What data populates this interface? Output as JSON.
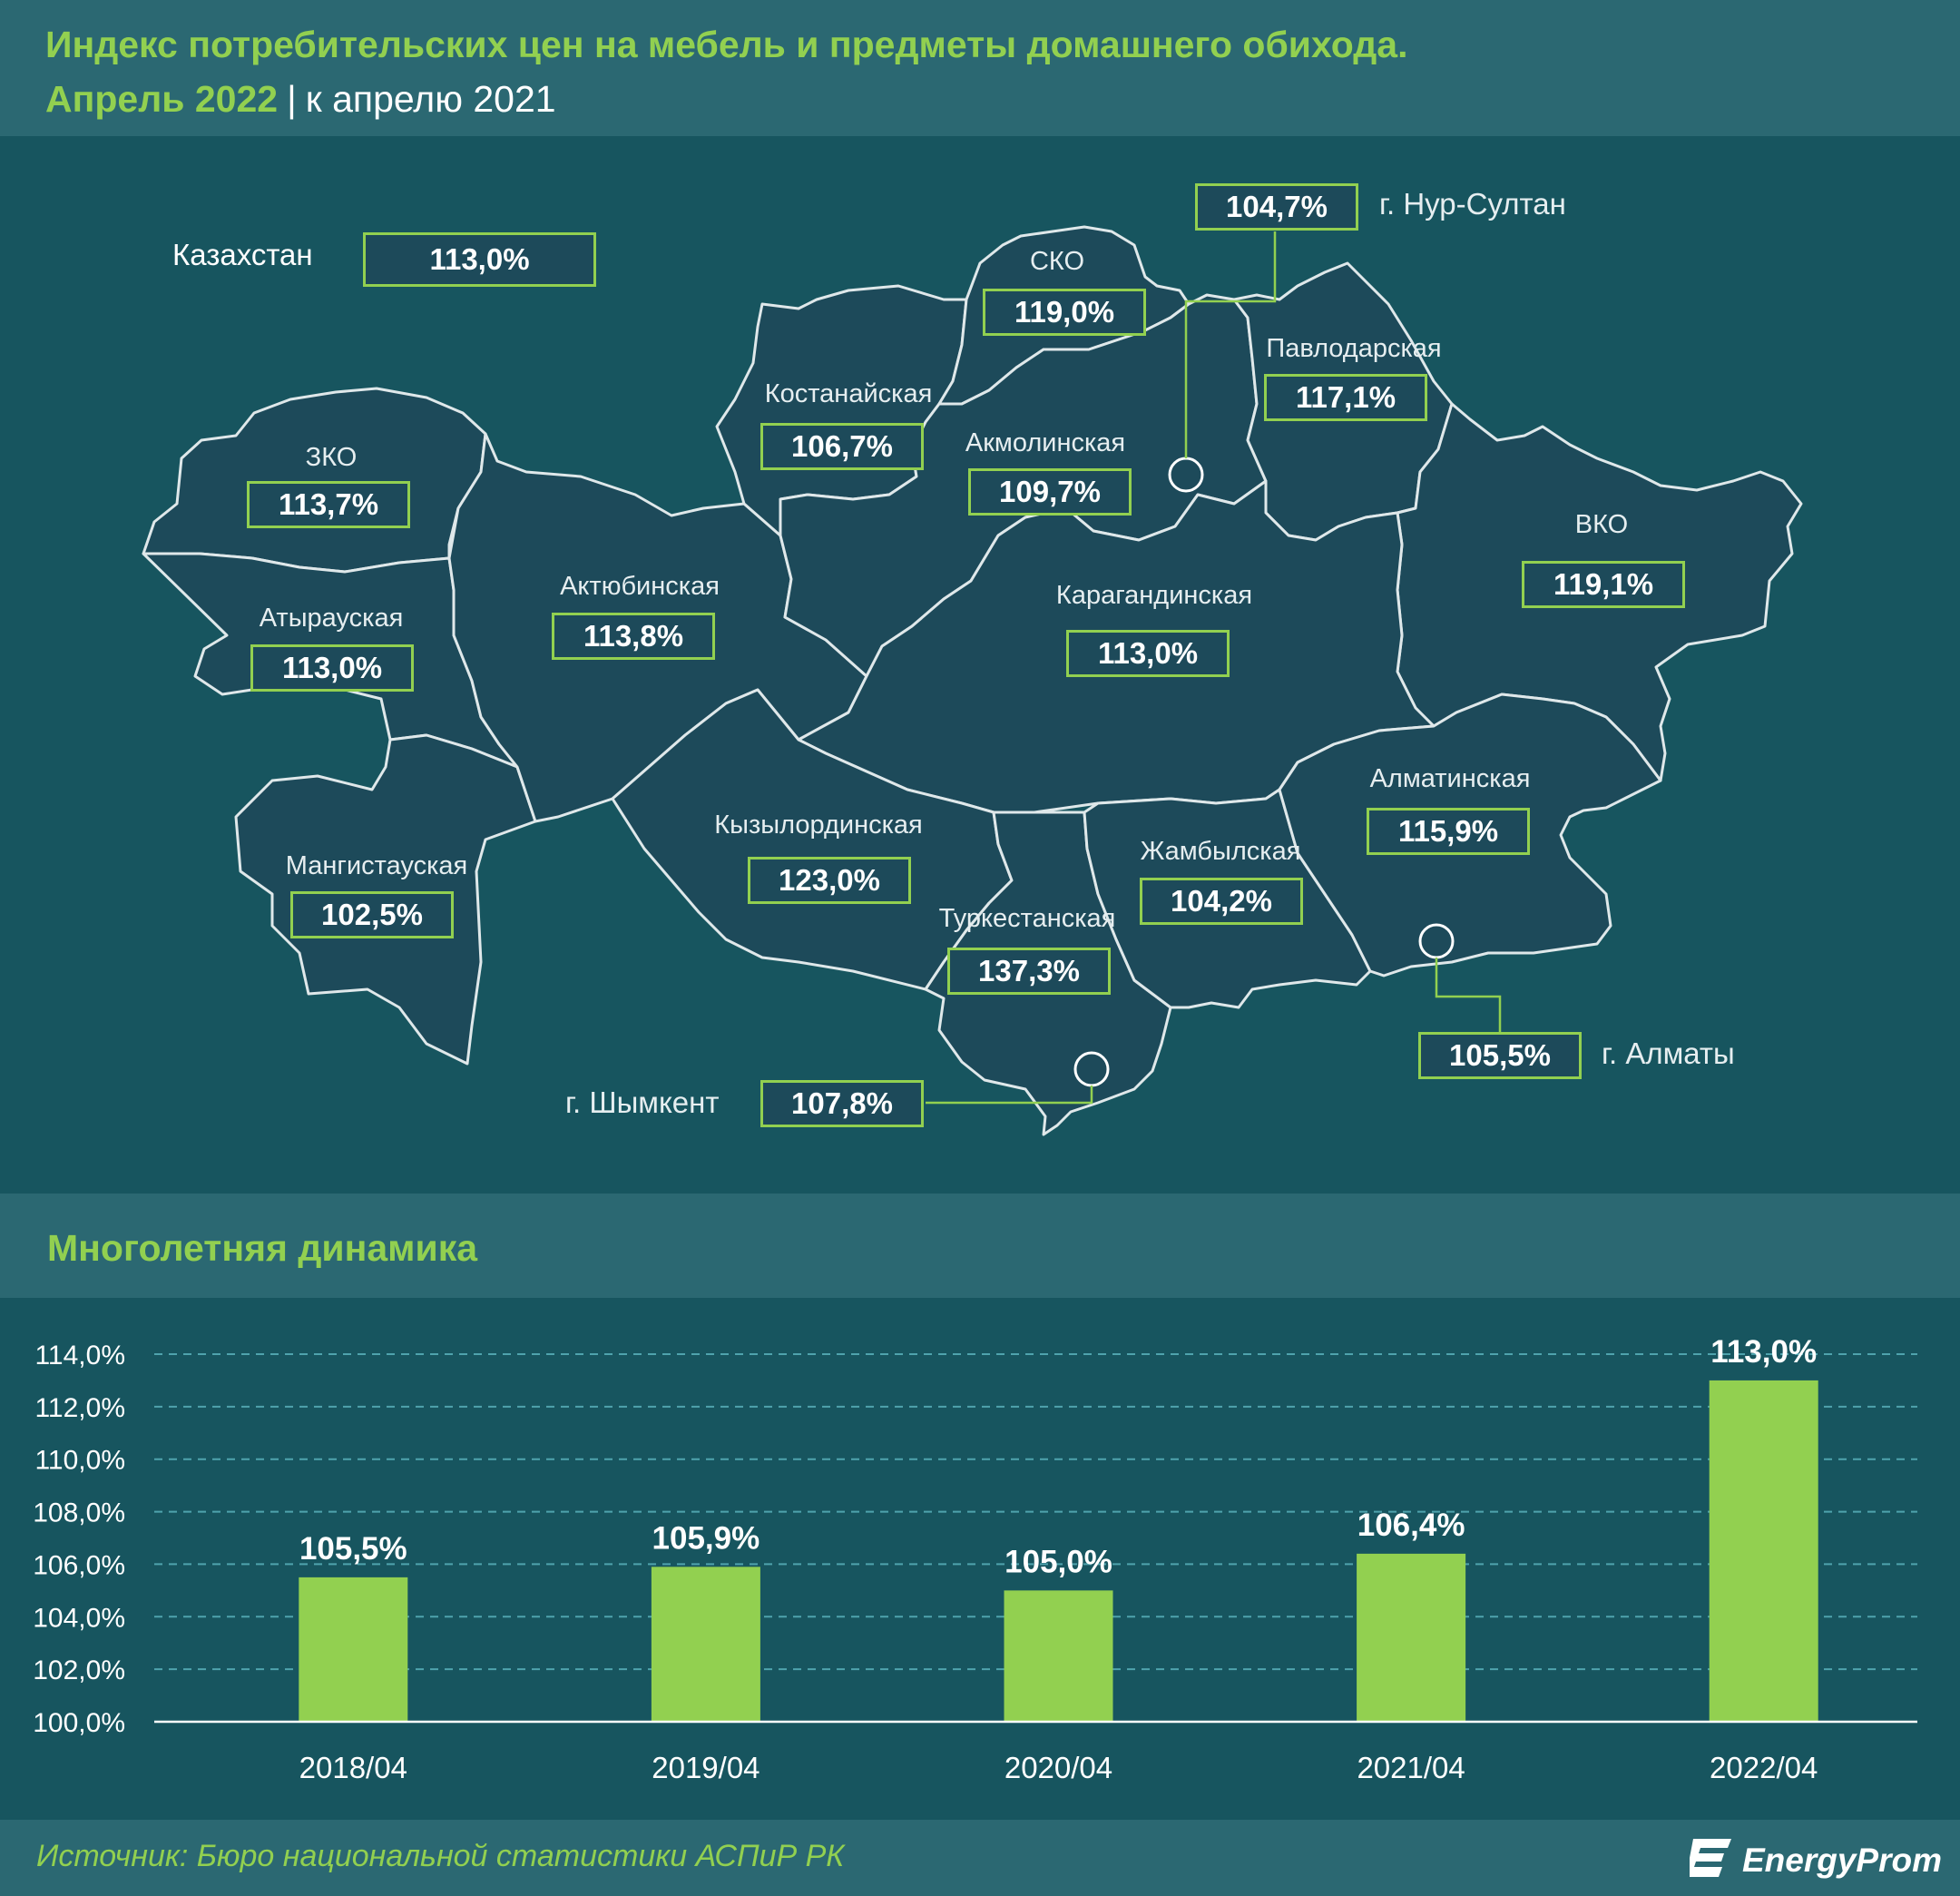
{
  "header": {
    "title": "Индекс потребительских цен на мебель и предметы домашнего обихода.",
    "month": "Апрель 2022",
    "separator": "|",
    "comparison": "к апрелю 2021"
  },
  "map": {
    "country": {
      "name": "Казахстан",
      "value": "113,0%"
    },
    "regions": [
      {
        "id": "zko",
        "name": "ЗКО",
        "value": "113,7%"
      },
      {
        "id": "atyrau",
        "name": "Атырауская",
        "value": "113,0%"
      },
      {
        "id": "mangystau",
        "name": "Мангистауская",
        "value": "102,5%"
      },
      {
        "id": "aktobe",
        "name": "Актюбинская",
        "value": "113,8%"
      },
      {
        "id": "kostanay",
        "name": "Костанайская",
        "value": "106,7%"
      },
      {
        "id": "sko",
        "name": "СКО",
        "value": "119,0%"
      },
      {
        "id": "akmola",
        "name": "Акмолинская",
        "value": "109,7%"
      },
      {
        "id": "pavlodar",
        "name": "Павлодарская",
        "value": "117,1%"
      },
      {
        "id": "vko",
        "name": "ВКО",
        "value": "119,1%"
      },
      {
        "id": "karaganda",
        "name": "Карагандинская",
        "value": "113,0%"
      },
      {
        "id": "kyzylorda",
        "name": "Кызылординская",
        "value": "123,0%"
      },
      {
        "id": "turkestan",
        "name": "Туркестанская",
        "value": "137,3%"
      },
      {
        "id": "zhambyl",
        "name": "Жамбылская",
        "value": "104,2%"
      },
      {
        "id": "almaty-obl",
        "name": "Алматинская",
        "value": "115,9%"
      }
    ],
    "cities": [
      {
        "id": "nur-sultan",
        "name": "г. Нур-Султан",
        "value": "104,7%"
      },
      {
        "id": "almaty",
        "name": "г. Алматы",
        "value": "105,5%"
      },
      {
        "id": "shymkent",
        "name": "г. Шымкент",
        "value": "107,8%"
      }
    ]
  },
  "dynamics": {
    "title": "Многолетняя динамика"
  },
  "chart_data": {
    "type": "bar",
    "title": "Многолетняя динамика",
    "categories": [
      "2018/04",
      "2019/04",
      "2020/04",
      "2021/04",
      "2022/04"
    ],
    "values": [
      105.5,
      105.9,
      105.0,
      106.4,
      113.0
    ],
    "data_labels": [
      "105,5%",
      "105,9%",
      "105,0%",
      "106,4%",
      "113,0%"
    ],
    "ylim": [
      100,
      114
    ],
    "yticks": [
      100,
      102,
      104,
      106,
      108,
      110,
      112,
      114
    ],
    "ytick_labels": [
      "100,0%",
      "102,0%",
      "104,0%",
      "106,0%",
      "108,0%",
      "110,0%",
      "112,0%",
      "114,0%"
    ],
    "grid": true,
    "bar_color": "#92d050"
  },
  "footer": {
    "source": "Источник: Бюро национальной статистики АСПиР РК",
    "logo": "EnergyProm"
  },
  "colors": {
    "accent": "#92d050",
    "background": "#17555f",
    "band": "#2b6872",
    "region": "#1d4a5a"
  }
}
